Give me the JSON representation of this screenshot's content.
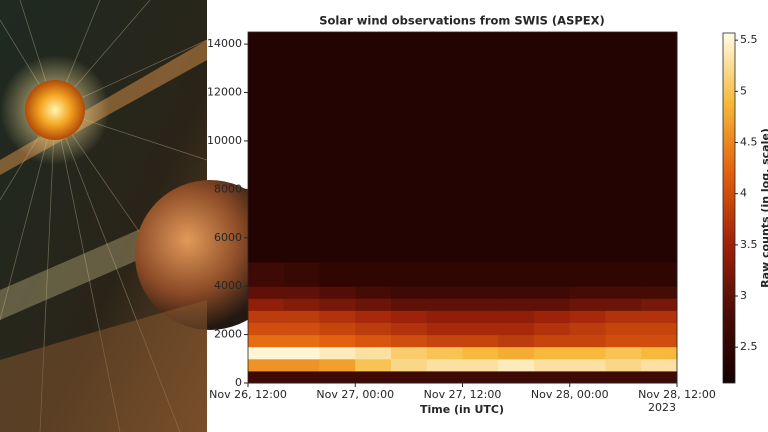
{
  "chart_data": {
    "type": "heatmap",
    "title": "Solar wind observations from SWIS (ASPEX)",
    "x_label": "Time (in UTC)",
    "x_offset_label": "2023",
    "colorbar_label": "Raw counts (in log. scale)",
    "xlim": [
      "2023-11-26T12:00",
      "2023-11-28T12:00"
    ],
    "xticks": [
      {
        "value": "2023-11-26T12:00",
        "label": "Nov 26, 12:00"
      },
      {
        "value": "2023-11-27T00:00",
        "label": "Nov 27, 00:00"
      },
      {
        "value": "2023-11-27T12:00",
        "label": "Nov 27, 12:00"
      },
      {
        "value": "2023-11-28T00:00",
        "label": "Nov 28, 00:00"
      },
      {
        "value": "2023-11-28T12:00",
        "label": "Nov 28, 12:00"
      }
    ],
    "ylim": [
      0,
      14500
    ],
    "yticks": [
      0,
      2000,
      4000,
      6000,
      8000,
      10000,
      12000,
      14000
    ],
    "clim": [
      2.15,
      5.57
    ],
    "cticks": [
      2.5,
      3,
      3.5,
      4,
      4.5,
      5,
      5.5
    ],
    "colormap": [
      "#140000",
      "#4a0c06",
      "#a0220a",
      "#e2600e",
      "#f6b838",
      "#fffce6"
    ],
    "x_edges": [
      "2023-11-26T12:00",
      "2023-11-26T16:00",
      "2023-11-26T20:00",
      "2023-11-27T00:00",
      "2023-11-27T04:00",
      "2023-11-27T08:00",
      "2023-11-27T12:00",
      "2023-11-27T16:00",
      "2023-11-27T20:00",
      "2023-11-28T00:00",
      "2023-11-28T04:00",
      "2023-11-28T08:00",
      "2023-11-28T12:00"
    ],
    "y_edges": [
      0,
      500,
      1000,
      1500,
      2000,
      2500,
      3000,
      3500,
      4000,
      5000,
      14500
    ],
    "z": [
      [
        2.7,
        2.7,
        2.7,
        2.7,
        2.7,
        2.7,
        2.7,
        2.7,
        2.7,
        2.7,
        2.7,
        2.7
      ],
      [
        4.6,
        4.6,
        4.7,
        5.0,
        5.2,
        5.3,
        5.3,
        5.4,
        5.3,
        5.3,
        5.2,
        5.3
      ],
      [
        5.5,
        5.5,
        5.4,
        5.3,
        5.1,
        5.0,
        4.9,
        4.8,
        4.9,
        4.9,
        5.0,
        4.9
      ],
      [
        4.3,
        4.3,
        4.2,
        4.1,
        4.0,
        3.9,
        3.9,
        3.8,
        3.9,
        3.9,
        4.0,
        4.0
      ],
      [
        4.0,
        4.0,
        3.9,
        3.8,
        3.7,
        3.6,
        3.6,
        3.6,
        3.7,
        3.8,
        3.9,
        3.9
      ],
      [
        3.8,
        3.8,
        3.7,
        3.6,
        3.5,
        3.4,
        3.4,
        3.4,
        3.5,
        3.6,
        3.7,
        3.7
      ],
      [
        3.4,
        3.3,
        3.2,
        3.1,
        3.0,
        3.0,
        3.0,
        3.0,
        3.0,
        3.1,
        3.1,
        3.2
      ],
      [
        3.0,
        3.0,
        2.9,
        2.8,
        2.7,
        2.7,
        2.7,
        2.7,
        2.7,
        2.8,
        2.8,
        2.8
      ],
      [
        2.7,
        2.6,
        2.5,
        2.5,
        2.5,
        2.5,
        2.5,
        2.5,
        2.5,
        2.5,
        2.5,
        2.5
      ],
      [
        2.35,
        2.35,
        2.35,
        2.35,
        2.35,
        2.35,
        2.35,
        2.35,
        2.35,
        2.35,
        2.35,
        2.35
      ]
    ]
  }
}
